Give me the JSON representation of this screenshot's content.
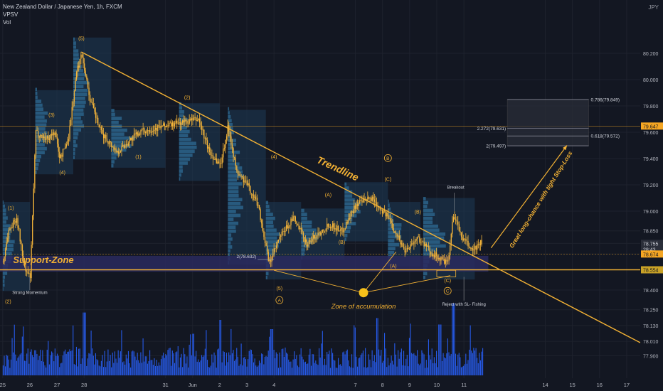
{
  "header": {
    "title": "New Zealand Dollar / Japanese Yen, 1h, FXCM",
    "indicator_1": "VPSV",
    "indicator_2": "Vol",
    "currency": "JPY"
  },
  "colors": {
    "background": "#131722",
    "candle": "#f5b53a",
    "trendline": "#f2b134",
    "support_zone": "#2a2a5e",
    "volume": "#2962ff",
    "price_tag_orange": "#f5a623",
    "price_tag_gold": "#c9a227",
    "text": "#d1d4dc",
    "grid": "#1e222d"
  },
  "chart_data": {
    "type": "candlestick",
    "symbol": "NZDJPY",
    "timeframe": "1h",
    "y_range": [
      77.85,
      80.35
    ],
    "x_range": [
      "2021-05-25",
      "2021-06-17"
    ],
    "y_ticks": [
      "80.200",
      "80.000",
      "79.800",
      "79.600",
      "79.400",
      "79.200",
      "79.000",
      "78.850",
      "78.755",
      "78.674",
      "78.554",
      "78.400",
      "78.250",
      "78.130",
      "78.010",
      "77.900"
    ],
    "x_ticks": [
      "25",
      "26",
      "27",
      "28",
      "31",
      "Jun",
      "2",
      "3",
      "4",
      "7",
      "8",
      "9",
      "10",
      "11",
      "14",
      "15",
      "16",
      "17"
    ],
    "x_tick_days": [
      25,
      26,
      27,
      28,
      31,
      32,
      33,
      34,
      35,
      38,
      39,
      40,
      41,
      42,
      45,
      46,
      47,
      48
    ],
    "price_tags": [
      {
        "value": 79.647,
        "label": "79.647",
        "style": "orange"
      },
      {
        "value": 78.755,
        "label": "78.755",
        "style": "dark"
      },
      {
        "value": 78.71,
        "label": "28:43",
        "style": "dark"
      },
      {
        "value": 78.674,
        "label": "78.674",
        "style": "orange"
      },
      {
        "value": 78.554,
        "label": "78.554",
        "style": "gold"
      }
    ],
    "price_path": [
      {
        "d": 24.9,
        "p": 78.5
      },
      {
        "d": 25.2,
        "p": 78.85
      },
      {
        "d": 25.5,
        "p": 78.95
      },
      {
        "d": 25.8,
        "p": 78.55
      },
      {
        "d": 26.0,
        "p": 78.5
      },
      {
        "d": 26.2,
        "p": 79.6
      },
      {
        "d": 26.6,
        "p": 79.55
      },
      {
        "d": 26.9,
        "p": 79.6
      },
      {
        "d": 27.1,
        "p": 79.4
      },
      {
        "d": 27.4,
        "p": 79.55
      },
      {
        "d": 27.7,
        "p": 80.05
      },
      {
        "d": 27.9,
        "p": 80.2
      },
      {
        "d": 28.2,
        "p": 79.85
      },
      {
        "d": 28.6,
        "p": 79.6
      },
      {
        "d": 29.2,
        "p": 79.45
      },
      {
        "d": 30.0,
        "p": 79.6
      },
      {
        "d": 31.0,
        "p": 79.65
      },
      {
        "d": 32.2,
        "p": 79.7
      },
      {
        "d": 32.6,
        "p": 79.45
      },
      {
        "d": 33.0,
        "p": 79.35
      },
      {
        "d": 33.3,
        "p": 79.65
      },
      {
        "d": 33.6,
        "p": 79.3
      },
      {
        "d": 34.0,
        "p": 79.2
      },
      {
        "d": 34.4,
        "p": 79.05
      },
      {
        "d": 34.8,
        "p": 78.6
      },
      {
        "d": 35.2,
        "p": 78.8
      },
      {
        "d": 35.7,
        "p": 78.95
      },
      {
        "d": 36.2,
        "p": 78.75
      },
      {
        "d": 37.0,
        "p": 78.9
      },
      {
        "d": 37.5,
        "p": 78.85
      },
      {
        "d": 38.0,
        "p": 79.05
      },
      {
        "d": 38.6,
        "p": 79.1
      },
      {
        "d": 39.2,
        "p": 78.95
      },
      {
        "d": 39.8,
        "p": 78.7
      },
      {
        "d": 40.3,
        "p": 78.8
      },
      {
        "d": 40.7,
        "p": 78.7
      },
      {
        "d": 41.0,
        "p": 78.65
      },
      {
        "d": 41.4,
        "p": 78.6
      },
      {
        "d": 41.6,
        "p": 78.98
      },
      {
        "d": 41.9,
        "p": 78.8
      },
      {
        "d": 42.3,
        "p": 78.7
      },
      {
        "d": 42.6,
        "p": 78.76
      }
    ],
    "trendlines": [
      {
        "name": "main-trendline",
        "from": {
          "d": 27.9,
          "p": 80.21
        },
        "to": {
          "d": 48.5,
          "p": 78.0
        }
      },
      {
        "name": "support-line",
        "from": {
          "d": 24.9,
          "p": 78.554
        },
        "to": {
          "d": 48.5,
          "p": 78.554
        }
      }
    ],
    "support_zone": {
      "top": 78.66,
      "bottom": 78.54,
      "from": 24.9,
      "to": 42.9
    },
    "fib_levels": [
      {
        "label": "0.786(79.849)",
        "value": 79.849
      },
      {
        "label": "2.272(79.631)",
        "value": 79.631
      },
      {
        "label": "0.618(79.572)",
        "value": 79.572
      },
      {
        "label": "2(79.497)",
        "value": 79.497
      },
      {
        "label": "2(78.632)",
        "value": 78.632
      }
    ],
    "wave_labels": [
      {
        "text": "(5)",
        "d": 27.9,
        "p": 80.3
      },
      {
        "text": "(3)",
        "d": 26.8,
        "p": 79.72
      },
      {
        "text": "(4)",
        "d": 27.2,
        "p": 79.28
      },
      {
        "text": "(1)",
        "d": 25.3,
        "p": 79.01
      },
      {
        "text": "(2)",
        "d": 25.2,
        "p": 78.3
      },
      {
        "text": "(2)",
        "d": 31.8,
        "p": 79.85
      },
      {
        "text": "(1)",
        "d": 30.0,
        "p": 79.4
      },
      {
        "text": "(4)",
        "d": 35.0,
        "p": 79.4
      },
      {
        "text": "(3)",
        "d": 34.3,
        "p": 79.08
      },
      {
        "text": "(5)",
        "d": 35.2,
        "p": 78.4
      },
      {
        "text": "(A)",
        "d": 37.0,
        "p": 79.11
      },
      {
        "text": "(B)",
        "d": 37.5,
        "p": 78.75
      },
      {
        "text": "(C)",
        "d": 39.2,
        "p": 79.23
      },
      {
        "text": "(A)",
        "d": 39.4,
        "p": 78.57
      },
      {
        "text": "(B)",
        "d": 40.3,
        "p": 78.98
      },
      {
        "text": "(C)",
        "d": 41.4,
        "p": 78.46
      }
    ],
    "circled_labels": [
      {
        "text": "A",
        "d": 35.2,
        "p": 78.31
      },
      {
        "text": "B",
        "d": 39.2,
        "p": 79.39
      },
      {
        "text": "C",
        "d": 41.4,
        "p": 78.38
      }
    ],
    "annotations": [
      {
        "text": "Strong Momentum",
        "d": 26.0,
        "p": 78.37
      },
      {
        "text": "Breakout",
        "d": 41.7,
        "p": 79.17
      },
      {
        "text": "Reject with SL- Fishing",
        "d": 42.0,
        "p": 78.28
      },
      {
        "text": "Zone of accumulation",
        "d": 38.3,
        "p": 78.26
      },
      {
        "text": "Trendline",
        "d": 37.3,
        "p": 79.3
      },
      {
        "text": "Support-Zone",
        "d": 26.5,
        "p": 78.605
      },
      {
        "text": "Great long-chance with tight Stop-Loss",
        "d": 44.9,
        "p": 79.08
      }
    ],
    "accumulation_point": {
      "d": 38.3,
      "p": 78.38
    },
    "accumulation_targets": [
      {
        "d": 35.0,
        "p": 78.55
      },
      {
        "d": 39.5,
        "p": 78.69
      },
      {
        "d": 41.5,
        "p": 78.51
      }
    ],
    "projection_arrow": {
      "from": {
        "d": 43.0,
        "p": 78.72
      },
      "to": {
        "d": 45.8,
        "p": 79.5
      }
    },
    "volume_peaks": [
      {
        "d": 28.0,
        "v": 0.68
      },
      {
        "d": 32.0,
        "v": 0.45
      },
      {
        "d": 33.0,
        "v": 0.6
      },
      {
        "d": 34.9,
        "v": 0.5
      },
      {
        "d": 38.8,
        "v": 0.62
      },
      {
        "d": 41.1,
        "v": 0.55
      },
      {
        "d": 41.6,
        "v": 0.78
      }
    ]
  }
}
